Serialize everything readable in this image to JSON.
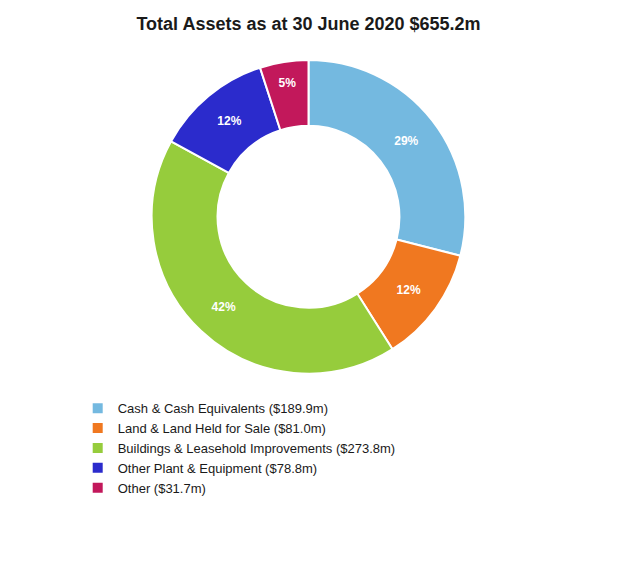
{
  "chart_data": {
    "type": "pie",
    "title": "Total Assets as at 30 June 2020 $655.2m",
    "categories": [
      "Cash & Cash Equivalents ($189.9m)",
      "Land & Land Held for Sale ($81.0m)",
      "Buildings & Leasehold Improvements ($273.8m)",
      "Other Plant & Equipment ($78.8m)",
      "Other ($31.7m)"
    ],
    "values": [
      29,
      12,
      42,
      12,
      5
    ],
    "value_labels": [
      "29%",
      "12%",
      "42%",
      "12%",
      "5%"
    ],
    "colors": [
      "#74B9E0",
      "#F07820",
      "#96CC3C",
      "#2B2BCC",
      "#C2185B"
    ],
    "data_labels": true,
    "legend": "bottom"
  }
}
